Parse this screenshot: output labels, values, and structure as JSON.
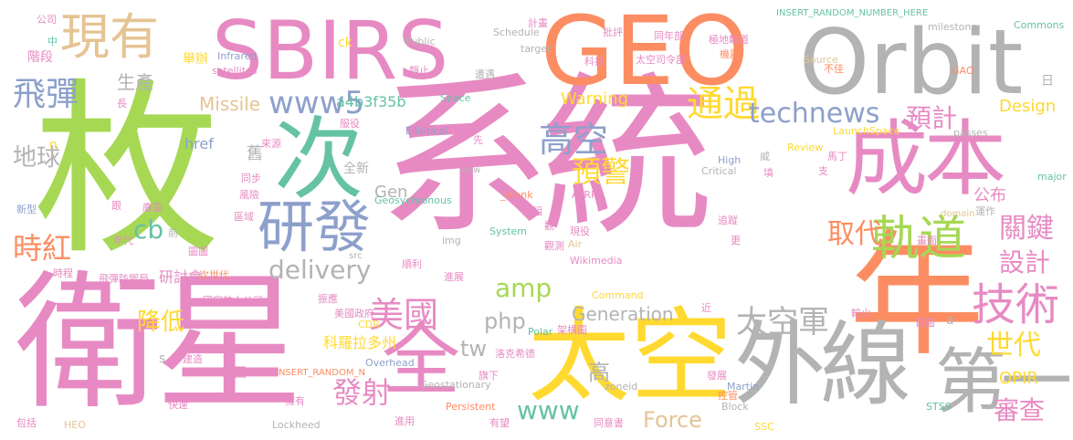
{
  "colors": {
    "background": "#ffffff",
    "pink": "#e78ac3",
    "green": "#a6d854",
    "orange": "#fc8d62",
    "gray": "#b3b3b3",
    "yellow": "#ffd92f",
    "teal": "#66c2a5",
    "blue": "#8da0cb",
    "tan": "#e5c494"
  },
  "words": [
    {
      "text": "系統",
      "color": "pink"
    },
    {
      "text": "枚",
      "color": "green"
    },
    {
      "text": "衛星",
      "color": "pink"
    },
    {
      "text": "GEO",
      "color": "orange"
    },
    {
      "text": "SBIRS",
      "color": "pink"
    },
    {
      "text": "Orbit",
      "color": "gray"
    },
    {
      "text": "太空",
      "color": "yellow"
    },
    {
      "text": "年",
      "color": "orange"
    },
    {
      "text": "成本",
      "color": "pink"
    },
    {
      "text": "外線",
      "color": "gray"
    },
    {
      "text": "現有",
      "color": "tan"
    },
    {
      "text": "次",
      "color": "teal"
    },
    {
      "text": "研發",
      "color": "blue"
    },
    {
      "text": "全",
      "color": "pink"
    },
    {
      "text": "第一",
      "color": "gray"
    },
    {
      "text": "軌道",
      "color": "green"
    },
    {
      "text": "技術",
      "color": "pink"
    },
    {
      "text": "太空軍",
      "color": "gray"
    },
    {
      "text": "飛彈",
      "color": "blue"
    },
    {
      "text": "美國",
      "color": "pink"
    },
    {
      "text": "高空",
      "color": "blue"
    },
    {
      "text": "通過",
      "color": "yellow"
    },
    {
      "text": "預警",
      "color": "yellow"
    },
    {
      "text": "www5",
      "color": "blue"
    },
    {
      "text": "technews",
      "color": "blue"
    },
    {
      "text": "時紅",
      "color": "orange"
    },
    {
      "text": "取代",
      "color": "orange"
    },
    {
      "text": "關鍵",
      "color": "pink"
    },
    {
      "text": "設計",
      "color": "pink"
    },
    {
      "text": "世代",
      "color": "yellow"
    },
    {
      "text": "審查",
      "color": "pink"
    },
    {
      "text": "發射",
      "color": "pink"
    },
    {
      "text": "預計",
      "color": "pink"
    },
    {
      "text": "Force",
      "color": "tan"
    },
    {
      "text": "delivery",
      "color": "gray"
    },
    {
      "text": "amp",
      "color": "green"
    },
    {
      "text": "cb",
      "color": "teal"
    },
    {
      "text": "www",
      "color": "teal"
    },
    {
      "text": "php",
      "color": "gray"
    },
    {
      "text": "tw",
      "color": "gray"
    },
    {
      "text": "Generation",
      "color": "gray"
    },
    {
      "text": "降低",
      "color": "yellow"
    },
    {
      "text": "地球",
      "color": "gray"
    },
    {
      "text": "Missile",
      "color": "tan"
    },
    {
      "text": "a4b3f35b",
      "color": "teal"
    },
    {
      "text": "Warning",
      "color": "yellow"
    },
    {
      "text": "Design",
      "color": "yellow"
    },
    {
      "text": "OPIR",
      "color": "yellow"
    },
    {
      "text": "高",
      "color": "gray"
    },
    {
      "text": "Gen",
      "color": "gray"
    },
    {
      "text": "生產",
      "color": "gray"
    },
    {
      "text": "研討會",
      "color": "pink"
    },
    {
      "text": "公布",
      "color": "pink"
    },
    {
      "text": "科羅拉多州",
      "color": "yellow"
    },
    {
      "text": "舊",
      "color": "gray"
    },
    {
      "text": "href",
      "color": "blue"
    },
    {
      "text": "階段",
      "color": "pink"
    },
    {
      "text": "舉辦",
      "color": "yellow"
    },
    {
      "text": "日",
      "color": "gray"
    },
    {
      "text": "全新",
      "color": "gray"
    },
    {
      "text": "國",
      "color": "pink"
    },
    {
      "text": "次世代",
      "color": "orange"
    },
    {
      "text": "Geostationary",
      "color": "gray"
    },
    {
      "text": "Overhead",
      "color": "blue"
    },
    {
      "text": "Lockheed",
      "color": "gray"
    },
    {
      "text": "Martin",
      "color": "blue"
    },
    {
      "text": "Persistent",
      "color": "orange"
    },
    {
      "text": "Infrared",
      "color": "blue"
    },
    {
      "text": "satellites",
      "color": "pink"
    },
    {
      "text": "INSERT_RANDOM_NUMBER_HERE",
      "color": "teal"
    },
    {
      "text": "INSERT_RANDOM_N",
      "color": "orange"
    },
    {
      "text": "Commons",
      "color": "teal"
    },
    {
      "text": "milestone",
      "color": "gray"
    },
    {
      "text": "Source",
      "color": "tan"
    },
    {
      "text": "Public",
      "color": "gray"
    },
    {
      "text": "Schedule",
      "color": "gray"
    },
    {
      "text": "target",
      "color": "gray"
    },
    {
      "text": "Elliptical",
      "color": "blue"
    },
    {
      "text": "Critical",
      "color": "gray"
    },
    {
      "text": "High",
      "color": "blue"
    },
    {
      "text": "Review",
      "color": "yellow"
    },
    {
      "text": "Space",
      "color": "teal"
    },
    {
      "text": "Air",
      "color": "tan"
    },
    {
      "text": "Command",
      "color": "yellow"
    },
    {
      "text": "Wikimedia",
      "color": "pink"
    },
    {
      "text": "System",
      "color": "teal"
    },
    {
      "text": "Geosychronous",
      "color": "teal"
    },
    {
      "text": "LaunchSpace",
      "color": "yellow"
    },
    {
      "text": "ATRR",
      "color": "pink"
    },
    {
      "text": "_blank",
      "color": "orange"
    },
    {
      "text": "img",
      "color": "gray"
    },
    {
      "text": "zoneid",
      "color": "gray"
    },
    {
      "text": "Polar",
      "color": "teal"
    },
    {
      "text": "CDR",
      "color": "yellow"
    },
    {
      "text": "HEO",
      "color": "tan"
    },
    {
      "text": "SSC",
      "color": "yellow"
    },
    {
      "text": "STSS",
      "color": "teal"
    },
    {
      "text": "Block",
      "color": "gray"
    },
    {
      "text": "GAO",
      "color": "orange"
    },
    {
      "text": "passes",
      "color": "gray"
    },
    {
      "text": "major",
      "color": "teal"
    },
    {
      "text": "domain",
      "color": "tan"
    },
    {
      "text": "evw",
      "color": "gray"
    },
    {
      "text": "src",
      "color": "gray"
    },
    {
      "text": "ck",
      "color": "yellow"
    },
    {
      "text": "n",
      "color": "yellow"
    },
    {
      "text": "a",
      "color": "gray"
    },
    {
      "text": "s",
      "color": "gray"
    },
    {
      "text": "公司",
      "color": "pink"
    },
    {
      "text": "中",
      "color": "teal"
    },
    {
      "text": "長",
      "color": "pink"
    },
    {
      "text": "計畫",
      "color": "pink"
    },
    {
      "text": "批評",
      "color": "pink"
    },
    {
      "text": "同年部",
      "color": "pink"
    },
    {
      "text": "極地軌道",
      "color": "pink"
    },
    {
      "text": "機器",
      "color": "orange"
    },
    {
      "text": "科技",
      "color": "pink"
    },
    {
      "text": "太空司令部",
      "color": "pink"
    },
    {
      "text": "不佳",
      "color": "orange"
    },
    {
      "text": "靜止",
      "color": "pink"
    },
    {
      "text": "遭遇",
      "color": "gray"
    },
    {
      "text": "服役",
      "color": "pink"
    },
    {
      "text": "來源",
      "color": "pink"
    },
    {
      "text": "同步",
      "color": "pink"
    },
    {
      "text": "風險",
      "color": "pink"
    },
    {
      "text": "區域",
      "color": "pink"
    },
    {
      "text": "新型",
      "color": "blue"
    },
    {
      "text": "年代",
      "color": "pink"
    },
    {
      "text": "時程",
      "color": "pink"
    },
    {
      "text": "前",
      "color": "gray"
    },
    {
      "text": "遠",
      "color": "pink"
    },
    {
      "text": "先",
      "color": "pink"
    },
    {
      "text": "進展",
      "color": "pink"
    },
    {
      "text": "順利",
      "color": "pink"
    },
    {
      "text": "觀測",
      "color": "pink"
    },
    {
      "text": "現役",
      "color": "pink"
    },
    {
      "text": "追蹤",
      "color": "pink"
    },
    {
      "text": "運作",
      "color": "gray"
    },
    {
      "text": "更",
      "color": "pink"
    },
    {
      "text": "填",
      "color": "pink"
    },
    {
      "text": "支",
      "color": "pink"
    },
    {
      "text": "馬丁",
      "color": "pink"
    },
    {
      "text": "威",
      "color": "gray"
    },
    {
      "text": "近",
      "color": "pink"
    },
    {
      "text": "較少",
      "color": "pink"
    },
    {
      "text": "首圖",
      "color": "pink"
    },
    {
      "text": "架構圖",
      "color": "pink"
    },
    {
      "text": "洛克希德",
      "color": "pink"
    },
    {
      "text": "旗下",
      "color": "pink"
    },
    {
      "text": "發展",
      "color": "pink"
    },
    {
      "text": "控管",
      "color": "orange"
    },
    {
      "text": "同意書",
      "color": "pink"
    },
    {
      "text": "有望",
      "color": "pink"
    },
    {
      "text": "進用",
      "color": "pink"
    },
    {
      "text": "擁有",
      "color": "pink"
    },
    {
      "text": "快速",
      "color": "pink"
    },
    {
      "text": "包括",
      "color": "pink"
    },
    {
      "text": "新",
      "color": "pink"
    },
    {
      "text": "建造",
      "color": "pink"
    },
    {
      "text": "美國政府",
      "color": "pink"
    },
    {
      "text": "振應",
      "color": "pink"
    },
    {
      "text": "國家航太公司",
      "color": "pink"
    },
    {
      "text": "飛彈防禦局",
      "color": "pink"
    },
    {
      "text": "圖圖",
      "color": "pink"
    },
    {
      "text": "跟",
      "color": "pink"
    },
    {
      "text": "廣圖",
      "color": "pink"
    },
    {
      "text": "重組",
      "color": "pink"
    },
    {
      "text": "觀",
      "color": "pink"
    },
    {
      "text": "畫面",
      "color": "pink"
    }
  ]
}
